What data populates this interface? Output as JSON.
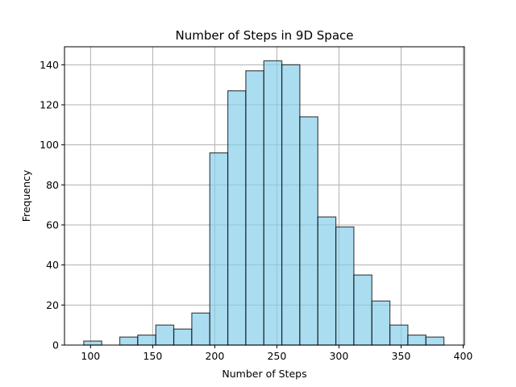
{
  "chart_data": {
    "type": "bar",
    "title": "Number of Steps in 9D Space",
    "xlabel": "Number of Steps",
    "ylabel": "Frequency",
    "xlim": [
      79,
      401
    ],
    "ylim": [
      0,
      149
    ],
    "x_ticks": [
      100,
      150,
      200,
      250,
      300,
      350,
      400
    ],
    "y_ticks": [
      0,
      20,
      40,
      60,
      80,
      100,
      120,
      140
    ],
    "grid": true,
    "bins": [
      {
        "start": 94.5,
        "end": 109.0,
        "value": 2
      },
      {
        "start": 109.0,
        "end": 123.5,
        "value": 0
      },
      {
        "start": 123.5,
        "end": 138.0,
        "value": 4
      },
      {
        "start": 138.0,
        "end": 152.5,
        "value": 5
      },
      {
        "start": 152.5,
        "end": 167.0,
        "value": 10
      },
      {
        "start": 167.0,
        "end": 181.5,
        "value": 8
      },
      {
        "start": 181.5,
        "end": 196.0,
        "value": 16
      },
      {
        "start": 196.0,
        "end": 210.5,
        "value": 96
      },
      {
        "start": 210.5,
        "end": 225.0,
        "value": 127
      },
      {
        "start": 225.0,
        "end": 239.5,
        "value": 137
      },
      {
        "start": 239.5,
        "end": 254.0,
        "value": 142
      },
      {
        "start": 254.0,
        "end": 268.5,
        "value": 140
      },
      {
        "start": 268.5,
        "end": 283.0,
        "value": 114
      },
      {
        "start": 283.0,
        "end": 297.5,
        "value": 64
      },
      {
        "start": 297.5,
        "end": 312.0,
        "value": 59
      },
      {
        "start": 312.0,
        "end": 326.5,
        "value": 35
      },
      {
        "start": 326.5,
        "end": 341.0,
        "value": 22
      },
      {
        "start": 341.0,
        "end": 355.5,
        "value": 10
      },
      {
        "start": 355.5,
        "end": 370.0,
        "value": 5
      },
      {
        "start": 370.0,
        "end": 384.5,
        "value": 4
      }
    ],
    "colors": {
      "bar_fill": "#87CEEB",
      "bar_edge": "#000000",
      "grid": "#b0b0b0"
    }
  }
}
